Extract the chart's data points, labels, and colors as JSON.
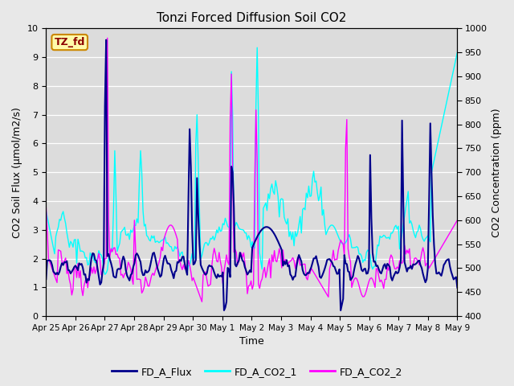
{
  "title": "Tonzi Forced Diffusion Soil CO2",
  "xlabel": "Time",
  "ylabel_left": "CO2 Soil Flux (μmol/m2/s)",
  "ylabel_right": "CO2 Concentration (ppm)",
  "legend_label": "TZ_fd",
  "ylim_left": [
    0.0,
    10.0
  ],
  "ylim_right": [
    400,
    1000
  ],
  "yticks_left": [
    0.0,
    1.0,
    2.0,
    3.0,
    4.0,
    5.0,
    6.0,
    7.0,
    8.0,
    9.0,
    10.0
  ],
  "yticks_right": [
    400,
    450,
    500,
    550,
    600,
    650,
    700,
    750,
    800,
    850,
    900,
    950,
    1000
  ],
  "colors": {
    "FD_A_Flux": "#00008B",
    "FD_A_CO2_1": "#00FFFF",
    "FD_A_CO2_2": "#FF00FF"
  },
  "lw": 1.0,
  "background_color": "#E8E8E8",
  "plot_bg": "#DCDCDC",
  "xtick_labels": [
    "Apr 25",
    "Apr 26",
    "Apr 27",
    "Apr 28",
    "Apr 29",
    "Apr 30",
    "May 1",
    "May 2",
    "May 3",
    "May 4",
    "May 5",
    "May 6",
    "May 7",
    "May 8",
    "May 9"
  ],
  "grid_color": "#FFFFFF",
  "title_fontsize": 11,
  "label_fontsize": 9,
  "tick_fontsize": 8
}
